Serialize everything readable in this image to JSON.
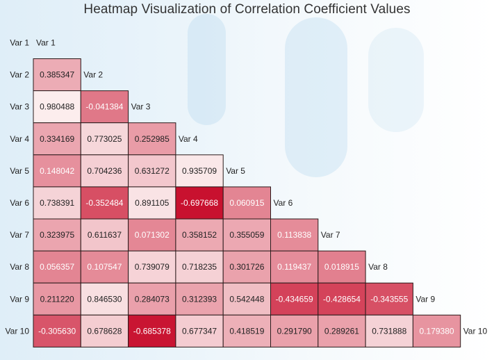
{
  "chart_data": {
    "type": "heatmap",
    "title": "Heatmap Visualization of Correlation Coefficient Values",
    "labels": [
      "Var 1",
      "Var 2",
      "Var 3",
      "Var 4",
      "Var 5",
      "Var 6",
      "Var 7",
      "Var 8",
      "Var 9",
      "Var 10"
    ],
    "layout": "lower-triangle",
    "value_range": [
      -0.7,
      1.0
    ],
    "colors": {
      "low": "#c8102e",
      "high": "#fcefef",
      "cell_border": "#2a1a1a",
      "light_text": "#ffffff",
      "dark_text": "#222222"
    },
    "rows": [
      {
        "row": "Var 2",
        "values": [
          "0.385347"
        ]
      },
      {
        "row": "Var 3",
        "values": [
          "0.980488",
          "-0.041384"
        ]
      },
      {
        "row": "Var 4",
        "values": [
          "0.334169",
          "0.773025",
          "0.252985"
        ]
      },
      {
        "row": "Var 5",
        "values": [
          "0.148042",
          "0.704236",
          "0.631272",
          "0.935709"
        ]
      },
      {
        "row": "Var 6",
        "values": [
          "0.738391",
          "-0.352484",
          "0.891105",
          "-0.697668",
          "0.060915"
        ]
      },
      {
        "row": "Var 7",
        "values": [
          "0.323975",
          "0.611637",
          "0.071302",
          "0.358152",
          "0.355059",
          "0.113838"
        ]
      },
      {
        "row": "Var 8",
        "values": [
          "0.056357",
          "0.107547",
          "0.739079",
          "0.718235",
          "0.301726",
          "0.119437",
          "0.018915"
        ]
      },
      {
        "row": "Var 9",
        "values": [
          "0.211220",
          "0.846530",
          "0.284073",
          "0.312393",
          "0.542448",
          "-0.434659",
          "-0.428654",
          "-0.343555"
        ]
      },
      {
        "row": "Var 10",
        "values": [
          "-0.305630",
          "0.678628",
          "-0.685378",
          "0.677347",
          "0.418519",
          "0.291790",
          "0.289261",
          "0.731888",
          "0.179380"
        ]
      }
    ]
  }
}
